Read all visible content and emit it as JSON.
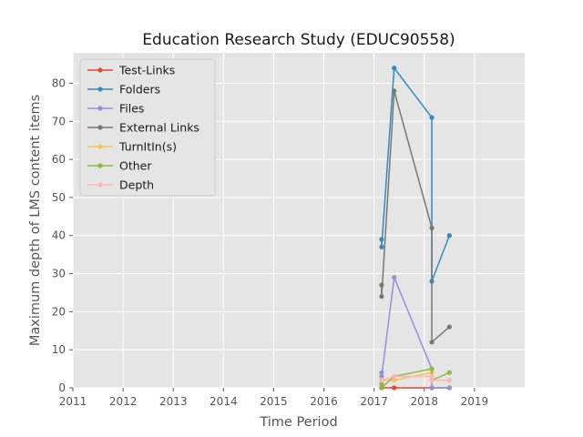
{
  "chart_data": {
    "type": "line",
    "title": "Education Research Study (EDUC90558)",
    "xlabel": "Time Period",
    "ylabel": "Maximum depth of LMS content items",
    "xlim": [
      2011,
      2020
    ],
    "ylim": [
      0,
      88
    ],
    "x_ticks": [
      "2011",
      "2012",
      "2013",
      "2014",
      "2015",
      "2016",
      "2017",
      "2018",
      "2019"
    ],
    "y_ticks": [
      "0",
      "10",
      "20",
      "30",
      "40",
      "50",
      "60",
      "70",
      "80"
    ],
    "x_tick_values": [
      2011,
      2012,
      2013,
      2014,
      2015,
      2016,
      2017,
      2018,
      2019
    ],
    "y_tick_values": [
      0,
      10,
      20,
      30,
      40,
      50,
      60,
      70,
      80
    ],
    "grid": true,
    "legend_position": "upper-left",
    "series": [
      {
        "name": "Test-Links",
        "color": "#e24a33",
        "x": [
          2017.15,
          2017.15,
          2017.4,
          2018.15,
          2018.15,
          2018.5
        ],
        "y": [
          0,
          0,
          0,
          0,
          0,
          0
        ]
      },
      {
        "name": "Folders",
        "color": "#348abd",
        "x": [
          2017.15,
          2017.15,
          2017.4,
          2018.15,
          2018.15,
          2018.5
        ],
        "y": [
          39,
          37,
          84,
          71,
          28,
          40
        ]
      },
      {
        "name": "Files",
        "color": "#988ed5",
        "x": [
          2017.15,
          2017.15,
          2017.4,
          2018.15,
          2018.15,
          2018.5
        ],
        "y": [
          4,
          3,
          29,
          5,
          0,
          0
        ]
      },
      {
        "name": "External Links",
        "color": "#777777",
        "x": [
          2017.15,
          2017.15,
          2017.4,
          2018.15,
          2018.15,
          2018.5
        ],
        "y": [
          27,
          24,
          78,
          42,
          12,
          16
        ]
      },
      {
        "name": "TurnItIn(s)",
        "color": "#fbc15e",
        "x": [
          2017.15,
          2017.15,
          2017.4,
          2018.15,
          2018.15,
          2018.5
        ],
        "y": [
          2,
          2,
          2,
          4,
          2,
          2
        ]
      },
      {
        "name": "Other",
        "color": "#8eba42",
        "x": [
          2017.15,
          2017.15,
          2017.4,
          2018.15,
          2018.15,
          2018.5
        ],
        "y": [
          1,
          0,
          3,
          5,
          2,
          4
        ]
      },
      {
        "name": "Depth",
        "color": "#ffb5b8",
        "x": [
          2017.15,
          2017.15,
          2017.4,
          2018.15,
          2018.15,
          2018.5
        ],
        "y": [
          2,
          2,
          3,
          3,
          2,
          2
        ]
      }
    ]
  }
}
